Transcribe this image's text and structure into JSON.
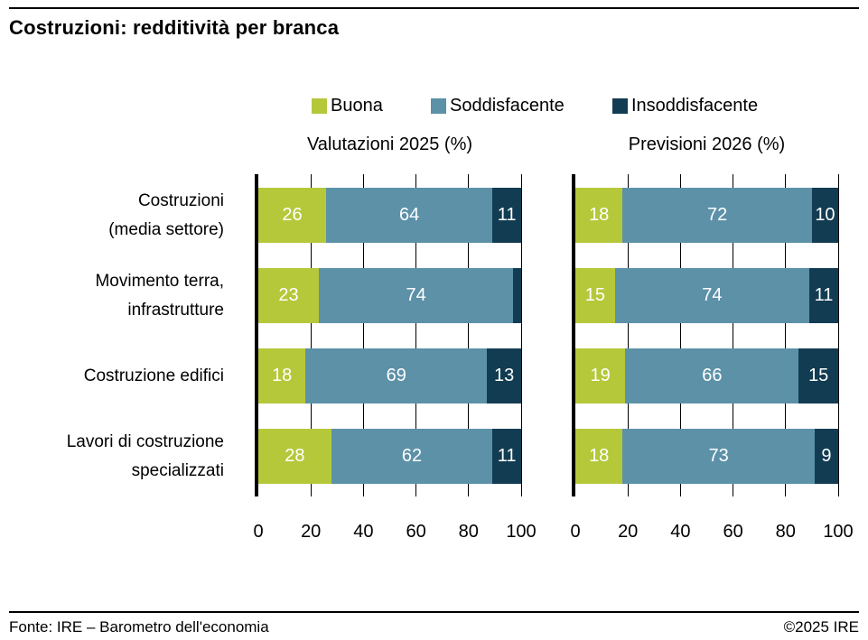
{
  "page": {
    "title": "Costruzioni: redditività per branca",
    "footer_left": "Fonte: IRE – Barometro dell'economia",
    "footer_right": "©2025 IRE"
  },
  "legend": {
    "items": [
      {
        "label": "Buona",
        "color": "#b5c83a"
      },
      {
        "label": "Soddisfacente",
        "color": "#5c91a8"
      },
      {
        "label": "Insoddisfacente",
        "color": "#123c52"
      }
    ]
  },
  "chart_data": {
    "type": "bar",
    "variant": "horizontal-stacked",
    "title": "Costruzioni: redditività per branca",
    "legend_entries": [
      "Buona",
      "Soddisfacente",
      "Insoddisfacente"
    ],
    "legend_position": "top",
    "colors": [
      "#b5c83a",
      "#5c91a8",
      "#123c52"
    ],
    "value_label_color": "#ffffff",
    "grid": "vertical",
    "xlim": [
      0,
      100
    ],
    "x_ticks": [
      0,
      20,
      40,
      60,
      80,
      100
    ],
    "categories": [
      [
        "Costruzioni",
        "(media settore)"
      ],
      [
        "Movimento terra,",
        "infrastrutture"
      ],
      [
        "Costruzione edifici"
      ],
      [
        "Lavori di costruzione",
        "specializzati"
      ]
    ],
    "panels": [
      {
        "subtitle": "Valutazioni 2025 (%)",
        "rows": [
          {
            "values": [
              26,
              64,
              11
            ],
            "labels": [
              "26",
              "64",
              "11"
            ]
          },
          {
            "values": [
              23,
              74,
              3
            ],
            "labels": [
              "23",
              "74",
              ""
            ]
          },
          {
            "values": [
              18,
              69,
              13
            ],
            "labels": [
              "18",
              "69",
              "13"
            ]
          },
          {
            "values": [
              28,
              62,
              11
            ],
            "labels": [
              "28",
              "62",
              "11"
            ]
          }
        ]
      },
      {
        "subtitle": "Previsioni 2026 (%)",
        "rows": [
          {
            "values": [
              18,
              72,
              10
            ],
            "labels": [
              "18",
              "72",
              "10"
            ]
          },
          {
            "values": [
              15,
              74,
              11
            ],
            "labels": [
              "15",
              "74",
              "11"
            ]
          },
          {
            "values": [
              19,
              66,
              15
            ],
            "labels": [
              "19",
              "66",
              "15"
            ]
          },
          {
            "values": [
              18,
              73,
              9
            ],
            "labels": [
              "18",
              "73",
              "9"
            ]
          }
        ]
      }
    ]
  }
}
